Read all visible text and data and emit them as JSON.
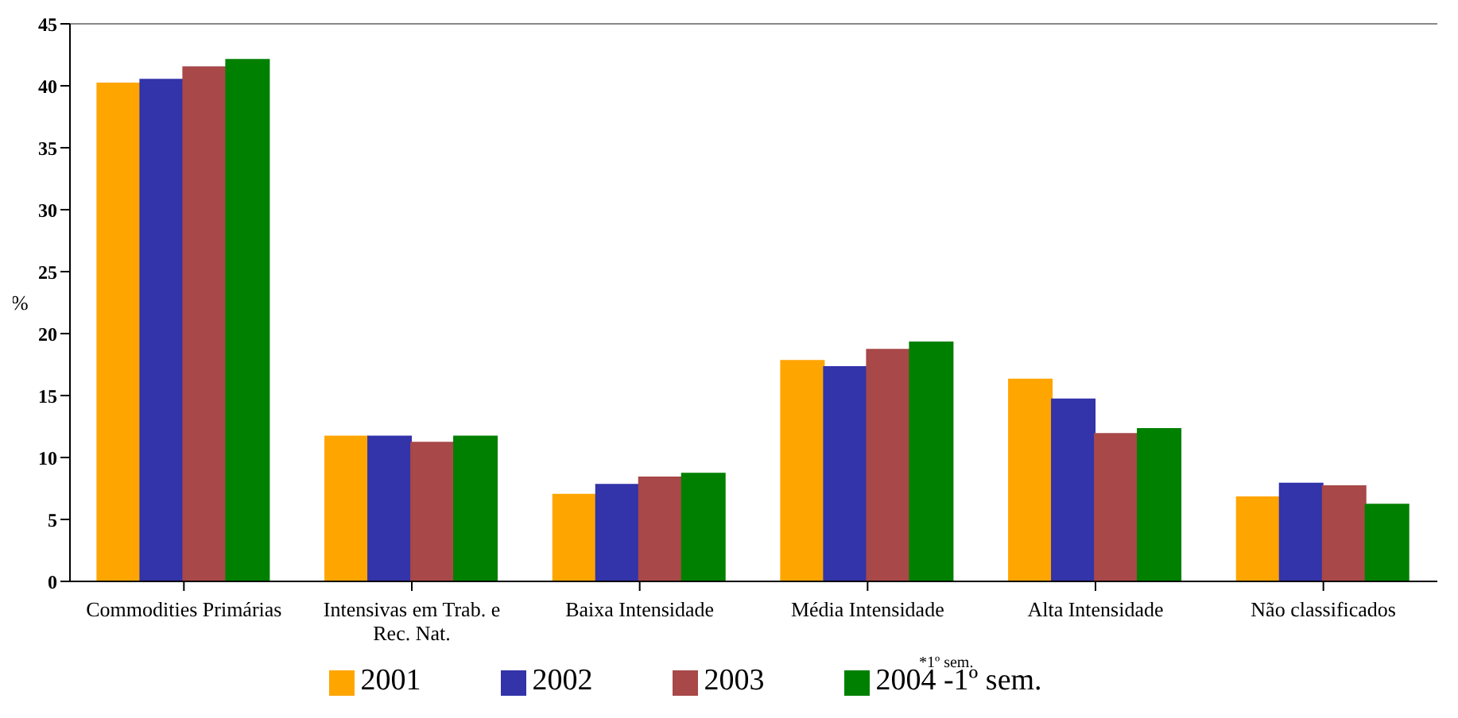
{
  "chart_data": {
    "type": "bar",
    "ylabel": "%",
    "categories": [
      "Commodities Primárias",
      "Intensivas em Trab. e Rec. Nat.",
      "Baixa Intensidade",
      "Média Intensidade",
      "Alta Intensidade",
      "Não classificados"
    ],
    "series": [
      {
        "name": "2001",
        "color": "#ffa500",
        "values": [
          40.2,
          11.7,
          7.0,
          17.8,
          16.3,
          6.8
        ]
      },
      {
        "name": "2002",
        "color": "#3333aa",
        "values": [
          40.5,
          11.7,
          7.8,
          17.3,
          14.7,
          7.9
        ]
      },
      {
        "name": "2003",
        "color": "#a84848",
        "values": [
          41.5,
          11.2,
          8.4,
          18.7,
          11.9,
          7.7
        ]
      },
      {
        "name": "2004 -1º sem.",
        "color": "#008000",
        "values": [
          42.1,
          11.7,
          8.7,
          19.3,
          12.3,
          6.2
        ]
      }
    ],
    "ylim": [
      0,
      45
    ],
    "yticks": [
      0,
      5,
      10,
      15,
      20,
      25,
      30,
      35,
      40,
      45
    ],
    "annotations": [
      "*1º sem."
    ],
    "grid": false,
    "legend": "bottom"
  }
}
